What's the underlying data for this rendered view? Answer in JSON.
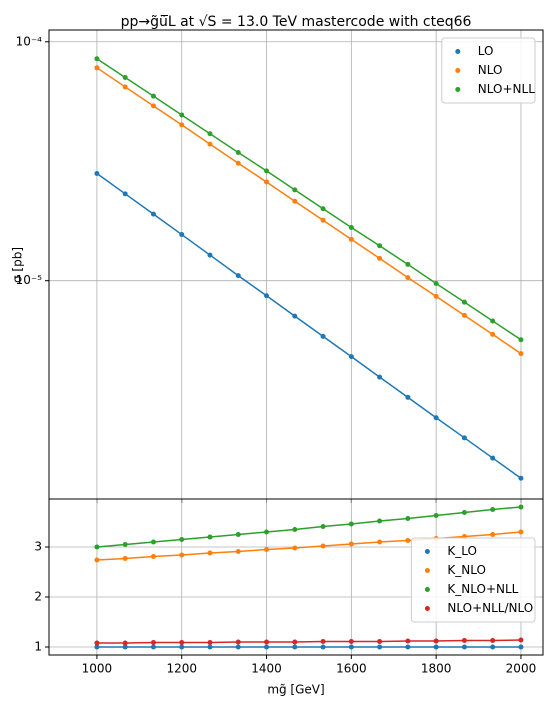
{
  "chart_data": [
    {
      "type": "line",
      "title": "pp→g̃ũ̅L at √S = 13.0 TeV mastercode with cteq66",
      "ylabel": "σ [pb]",
      "yscale": "log",
      "xlim": [
        887,
        2052
      ],
      "xticks": [
        1000,
        1200,
        1400,
        1600,
        1800,
        2000
      ],
      "ylim": [
        1.22e-06,
        0.000112
      ],
      "yticks": [
        {
          "value": 1e-05,
          "label": "10⁻⁵"
        },
        {
          "value": 0.0001,
          "label": "10⁻⁴"
        }
      ],
      "grid": true,
      "legend": "upper right",
      "x": [
        1000,
        1066.67,
        1133.33,
        1200,
        1266.67,
        1333.33,
        1400,
        1466.67,
        1533.33,
        1600,
        1666.67,
        1733.33,
        1800,
        1866.67,
        1933.33,
        2000
      ],
      "series": [
        {
          "name": "LO",
          "color": "#1f77b4",
          "values": [
            2.81e-05,
            2.31e-05,
            1.9e-05,
            1.56e-05,
            1.28e-05,
            1.05e-05,
            8.65e-06,
            7.11e-06,
            5.85e-06,
            4.81e-06,
            3.95e-06,
            3.25e-06,
            2.67e-06,
            2.2e-06,
            1.81e-06,
            1.49e-06
          ]
        },
        {
          "name": "NLO",
          "color": "#ff7f0e",
          "values": [
            7.78e-05,
            6.47e-05,
            5.39e-05,
            4.49e-05,
            3.73e-05,
            3.1e-05,
            2.59e-05,
            2.15e-05,
            1.79e-05,
            1.49e-05,
            1.24e-05,
            1.03e-05,
            8.6e-06,
            7.16e-06,
            5.96e-06,
            4.95e-06
          ]
        },
        {
          "name": "NLO+NLL",
          "color": "#2ca02c",
          "values": [
            8.49e-05,
            7.09e-05,
            5.92e-05,
            4.94e-05,
            4.12e-05,
            3.44e-05,
            2.88e-05,
            2.4e-05,
            2e-05,
            1.67e-05,
            1.4e-05,
            1.17e-05,
            9.73e-06,
            8.13e-06,
            6.78e-06,
            5.66e-06
          ]
        }
      ]
    },
    {
      "type": "line",
      "xlabel": "mg̃ [GeV]",
      "xlim": [
        887,
        2052
      ],
      "xticks": [
        1000,
        1200,
        1400,
        1600,
        1800,
        2000
      ],
      "ylim": [
        0.84,
        3.96
      ],
      "yticks": [
        1,
        2,
        3
      ],
      "grid": true,
      "legend": "lower right",
      "x": [
        1000,
        1066.67,
        1133.33,
        1200,
        1266.67,
        1333.33,
        1400,
        1466.67,
        1533.33,
        1600,
        1666.67,
        1733.33,
        1800,
        1866.67,
        1933.33,
        2000
      ],
      "series": [
        {
          "name": "K_LO",
          "color": "#1f77b4",
          "values": [
            1,
            1,
            1,
            1,
            1,
            1,
            1,
            1,
            1,
            1,
            1,
            1,
            1,
            1,
            1,
            1
          ]
        },
        {
          "name": "K_NLO",
          "color": "#ff7f0e",
          "values": [
            2.74,
            2.77,
            2.81,
            2.84,
            2.88,
            2.91,
            2.95,
            2.98,
            3.02,
            3.06,
            3.1,
            3.13,
            3.17,
            3.21,
            3.25,
            3.3
          ]
        },
        {
          "name": "K_NLO+NLL",
          "color": "#2ca02c",
          "values": [
            3.0,
            3.05,
            3.1,
            3.15,
            3.2,
            3.25,
            3.3,
            3.35,
            3.41,
            3.46,
            3.52,
            3.57,
            3.63,
            3.69,
            3.75,
            3.8
          ]
        },
        {
          "name": "NLO+NLL/NLO",
          "color": "#d62728",
          "values": [
            1.08,
            1.08,
            1.09,
            1.09,
            1.09,
            1.1,
            1.1,
            1.1,
            1.11,
            1.11,
            1.11,
            1.12,
            1.12,
            1.13,
            1.13,
            1.14
          ]
        }
      ]
    }
  ]
}
